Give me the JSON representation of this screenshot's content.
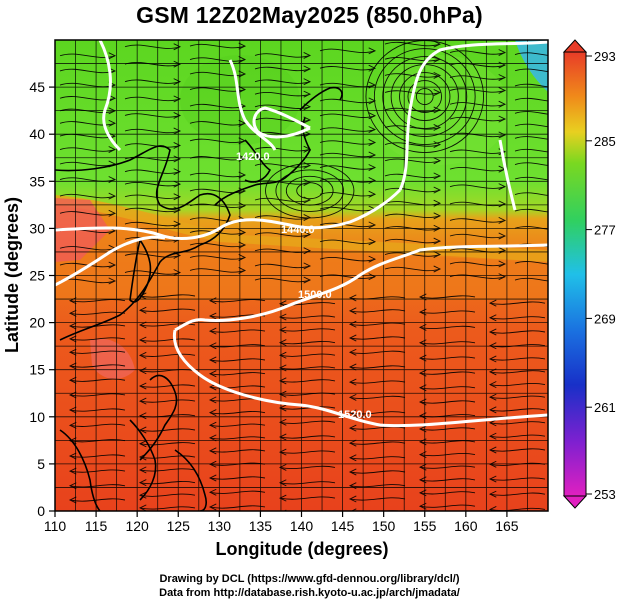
{
  "title": "GSM 12Z02May2025 (850.0hPa)",
  "axes": {
    "xlabel": "Longitude (degrees)",
    "ylabel": "Latitude (degrees)",
    "xlim": [
      110,
      170
    ],
    "ylim": [
      0,
      50
    ],
    "xticks": [
      110,
      115,
      120,
      125,
      130,
      135,
      140,
      145,
      150,
      155,
      160,
      165
    ],
    "yticks": [
      0,
      5,
      10,
      15,
      20,
      25,
      30,
      35,
      40,
      45
    ]
  },
  "colorbar": {
    "ticks": [
      253,
      261,
      269,
      277,
      285,
      293
    ],
    "range": [
      253,
      293
    ]
  },
  "contours": [
    {
      "label": "1520.0",
      "value": 1520
    },
    {
      "label": "1440.0",
      "value": 1440
    },
    {
      "label": "1420.0",
      "value": 1420
    },
    {
      "label": "1500.0",
      "value": 1500
    }
  ],
  "colors": {
    "warm": "#e8401c",
    "hot": "#f05a5a",
    "orange": "#f08a1a",
    "green": "#4ad21a",
    "light_green": "#6ee030",
    "cyan": "#3ab8e0",
    "coast": "#000000",
    "contour": "#ffffff"
  },
  "credits": {
    "line1": "Drawing by DCL (https://www.gfd-dennou.org/library/dcl/)",
    "line2": "Data from http://database.rish.kyoto-u.ac.jp/arch/jmadata/"
  }
}
